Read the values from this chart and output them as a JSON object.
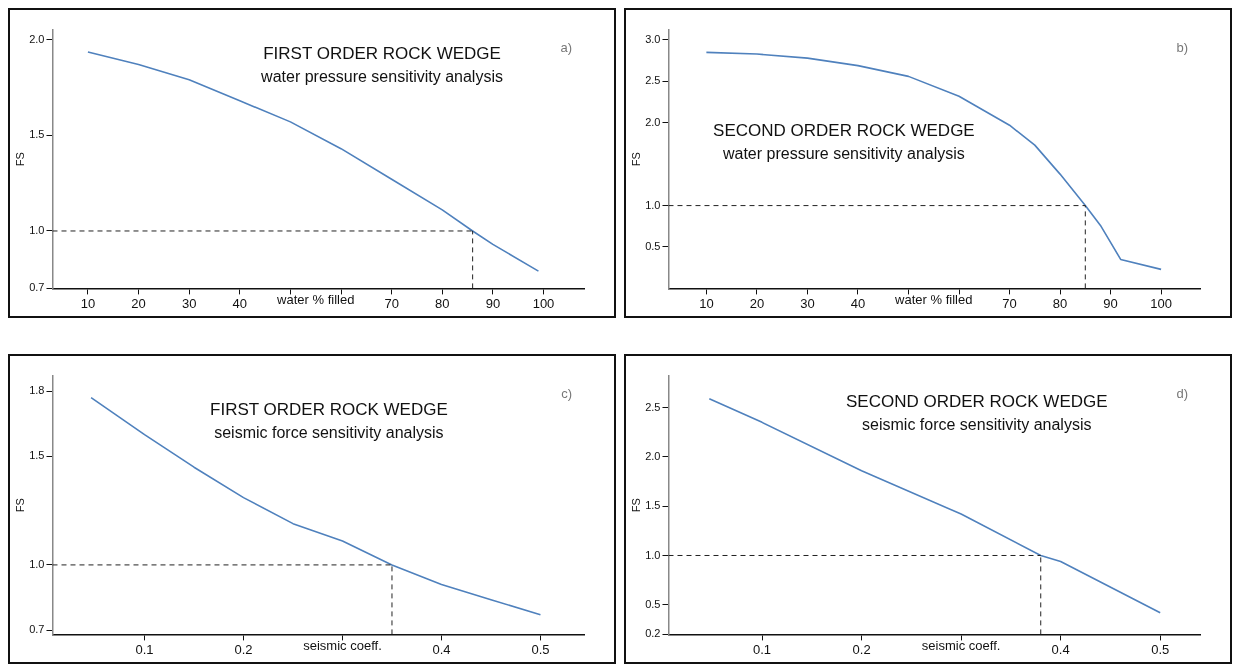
{
  "chart_data": [
    {
      "type": "line",
      "title": "FIRST ORDER ROCK WEDGE",
      "subtitle": "water pressure sensitivity analysis",
      "xlabel": "water % filled",
      "ylabel": "FS",
      "annotations": [
        "a)"
      ],
      "series": [
        {
          "color": "#4f81bd",
          "x": [
            10,
            20,
            30,
            40,
            50,
            60,
            70,
            80,
            86,
            90,
            99
          ],
          "values": [
            1.935,
            1.87,
            1.79,
            1.68,
            1.57,
            1.43,
            1.27,
            1.11,
            1.0,
            0.93,
            0.79
          ]
        }
      ],
      "xlim": [
        3,
        108
      ],
      "xticks": [
        10,
        20,
        30,
        40,
        {
          "value": 50,
          "label": null
        },
        {
          "value": 60,
          "label": null
        },
        70,
        80,
        90,
        100
      ],
      "ylim": [
        0.7,
        2.05
      ],
      "yticks": [
        0.7,
        {
          "value": 1,
          "label": "1.0"
        },
        1.5,
        {
          "value": 2,
          "label": "2.0"
        }
      ],
      "ref_lines": [
        {
          "axis": "y",
          "value": 1.0,
          "line_style": "dashed"
        },
        {
          "axis": "x",
          "value": 86,
          "line_style": "dashed"
        }
      ]
    },
    {
      "type": "line",
      "title": "SECOND ORDER ROCK WEDGE",
      "subtitle": "water pressure sensitivity analysis",
      "xlabel": "water % filled",
      "ylabel": "FS",
      "annotations": [
        "b)"
      ],
      "series": [
        {
          "color": "#4f81bd",
          "x": [
            10,
            20,
            30,
            40,
            50,
            60,
            70,
            75,
            80,
            85,
            88,
            92,
            100
          ],
          "values": [
            2.85,
            2.83,
            2.78,
            2.69,
            2.56,
            2.32,
            1.97,
            1.73,
            1.38,
            1.0,
            0.76,
            0.35,
            0.23
          ]
        }
      ],
      "xlim": [
        2.5,
        107.7
      ],
      "xticks": [
        10,
        20,
        30,
        40,
        {
          "value": 50,
          "label": null
        },
        {
          "value": 60,
          "label": null
        },
        70,
        80,
        90,
        100
      ],
      "ylim": [
        0,
        3.12
      ],
      "yticks": [
        0.5,
        {
          "value": 1,
          "label": "1.0"
        },
        {
          "value": 2,
          "label": "2.0"
        },
        2.5,
        {
          "value": 3,
          "label": "3.0"
        }
      ],
      "ref_lines": [
        {
          "axis": "y",
          "value": 1.0,
          "line_style": "dashed"
        },
        {
          "axis": "x",
          "value": 85,
          "line_style": "dashed"
        }
      ]
    },
    {
      "type": "line",
      "title": "FIRST ORDER ROCK WEDGE",
      "subtitle": "seismic force sensitivity analysis",
      "xlabel": "seismic coeff.",
      "ylabel": "FS",
      "annotations": [
        "c)"
      ],
      "series": [
        {
          "color": "#4f81bd",
          "x": [
            0.046,
            0.1,
            0.15,
            0.2,
            0.25,
            0.3,
            0.35,
            0.4,
            0.45,
            0.5
          ],
          "values": [
            1.77,
            1.6,
            1.45,
            1.31,
            1.19,
            1.11,
            1.0,
            0.91,
            0.84,
            0.77
          ]
        }
      ],
      "xlim": [
        0.007,
        0.544
      ],
      "xticks": [
        0.1,
        0.2,
        {
          "value": 0.3,
          "label": null
        },
        0.4,
        0.5
      ],
      "ylim": [
        0.68,
        1.87
      ],
      "yticks": [
        0.7,
        {
          "value": 1,
          "label": "1.0"
        },
        1.5,
        1.8
      ],
      "ref_lines": [
        {
          "axis": "y",
          "value": 1.0,
          "line_style": "dashed"
        },
        {
          "axis": "x",
          "value": 0.35,
          "line_style": "dashed"
        }
      ]
    },
    {
      "type": "line",
      "title": "SECOND ORDER ROCK WEDGE",
      "subtitle": "seismic force sensitivity analysis",
      "xlabel": "seismic coeff.",
      "ylabel": "FS",
      "annotations": [
        "d)"
      ],
      "series": [
        {
          "color": "#4f81bd",
          "x": [
            0.047,
            0.1,
            0.2,
            0.3,
            0.38,
            0.4,
            0.5
          ],
          "values": [
            2.59,
            2.35,
            1.86,
            1.42,
            1.0,
            0.94,
            0.42
          ]
        }
      ],
      "xlim": [
        0.006,
        0.54
      ],
      "xticks": [
        0.1,
        0.2,
        {
          "value": 0.3,
          "label": null
        },
        0.4,
        0.5
      ],
      "ylim": [
        0.2,
        2.82
      ],
      "yticks": [
        0.2,
        0.5,
        {
          "value": 1,
          "label": "1.0"
        },
        1.5,
        {
          "value": 2,
          "label": "2.0"
        },
        2.5
      ],
      "ref_lines": [
        {
          "axis": "y",
          "value": 1.0,
          "line_style": "dashed"
        },
        {
          "axis": "x",
          "value": 0.38,
          "line_style": "dashed"
        }
      ]
    }
  ]
}
